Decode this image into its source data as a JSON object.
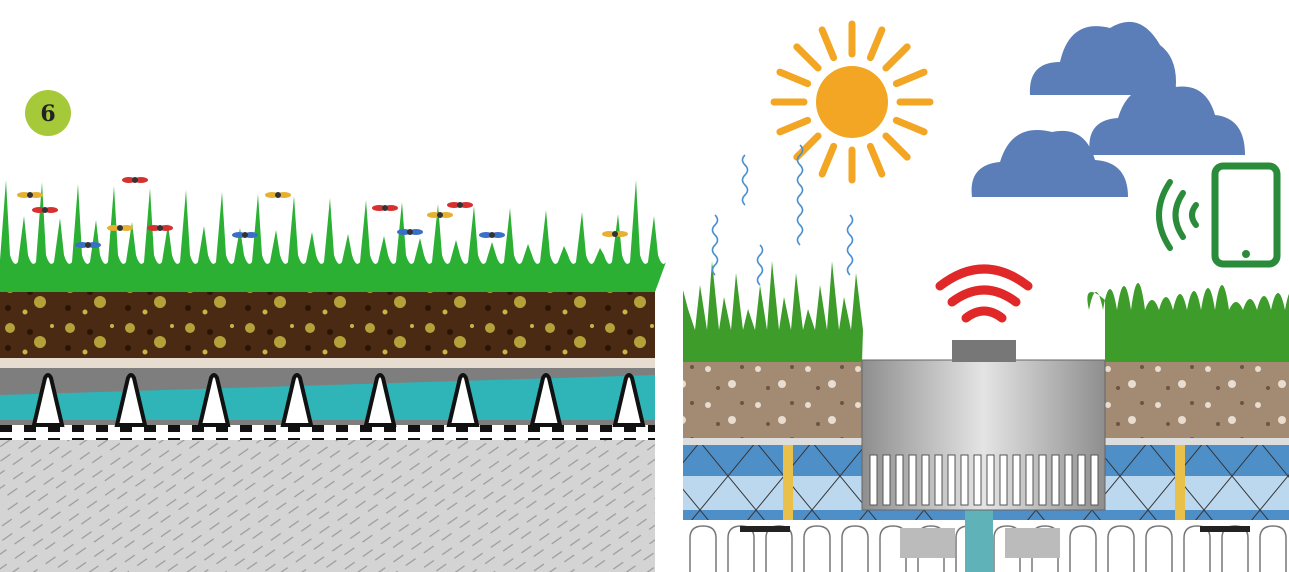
{
  "badge": {
    "label": "6"
  }
}
